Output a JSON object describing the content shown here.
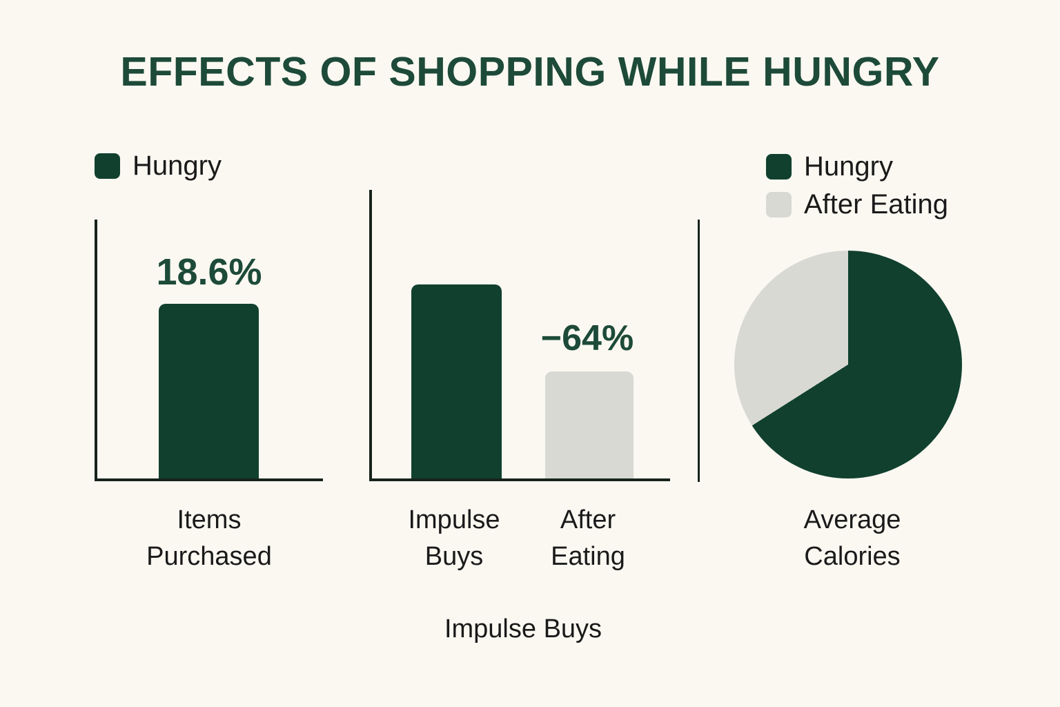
{
  "page": {
    "background": "#faf8f1"
  },
  "title": {
    "text": "EFFECTS OF SHOPPING WHILE HUNGRY"
  },
  "colors": {
    "hungry": "#11402f",
    "after_eating": "#d8d9d2",
    "axis": "#16231b",
    "text": "#1a1a1a",
    "accent": "#1d4a39",
    "background": "#faf8f1"
  },
  "panels": {
    "items": {
      "legend": [
        {
          "label": "Hungry",
          "color": "#11402f"
        }
      ],
      "value_label": "18.6%",
      "category_lines": [
        "Items",
        "Purchased"
      ]
    },
    "impulse": {
      "annotation": "−64%",
      "categories": [
        [
          "Impulse",
          "Buys"
        ],
        [
          "After",
          "Eating"
        ]
      ],
      "axis_title": "Impulse Buys"
    },
    "pie": {
      "legend": [
        {
          "label": "Hungry",
          "color": "#11402f"
        },
        {
          "label": "After Eating",
          "color": "#d8d9d2"
        }
      ],
      "category_lines": [
        "Average",
        "Calories"
      ]
    }
  },
  "chart_data": [
    {
      "type": "bar",
      "categories": [
        "Items Purchased"
      ],
      "series": [
        {
          "name": "Hungry",
          "values": [
            18.6
          ]
        }
      ],
      "data_labels": [
        "18.6%"
      ],
      "legend": [
        "Hungry"
      ],
      "legend_position": "top-left",
      "grid": false,
      "bar_height_relative": [
        0.675
      ]
    },
    {
      "type": "bar",
      "categories": [
        "Impulse Buys",
        "After Eating"
      ],
      "values": [
        100,
        36
      ],
      "annotation": "−64%",
      "annotation_target": "After Eating",
      "xlabel": "Impulse Buys",
      "grid": false,
      "colors": [
        "#11402f",
        "#d8d9d2"
      ],
      "bar_heights_relative": [
        1.0,
        0.55
      ]
    },
    {
      "type": "pie",
      "labels": [
        "Hungry",
        "After Eating"
      ],
      "values": [
        66,
        34
      ],
      "title": "Average Calories",
      "legend_position": "top",
      "start_angle_deg": 0,
      "direction": "clockwise",
      "colors": [
        "#11402f",
        "#d8d9d2"
      ]
    }
  ]
}
